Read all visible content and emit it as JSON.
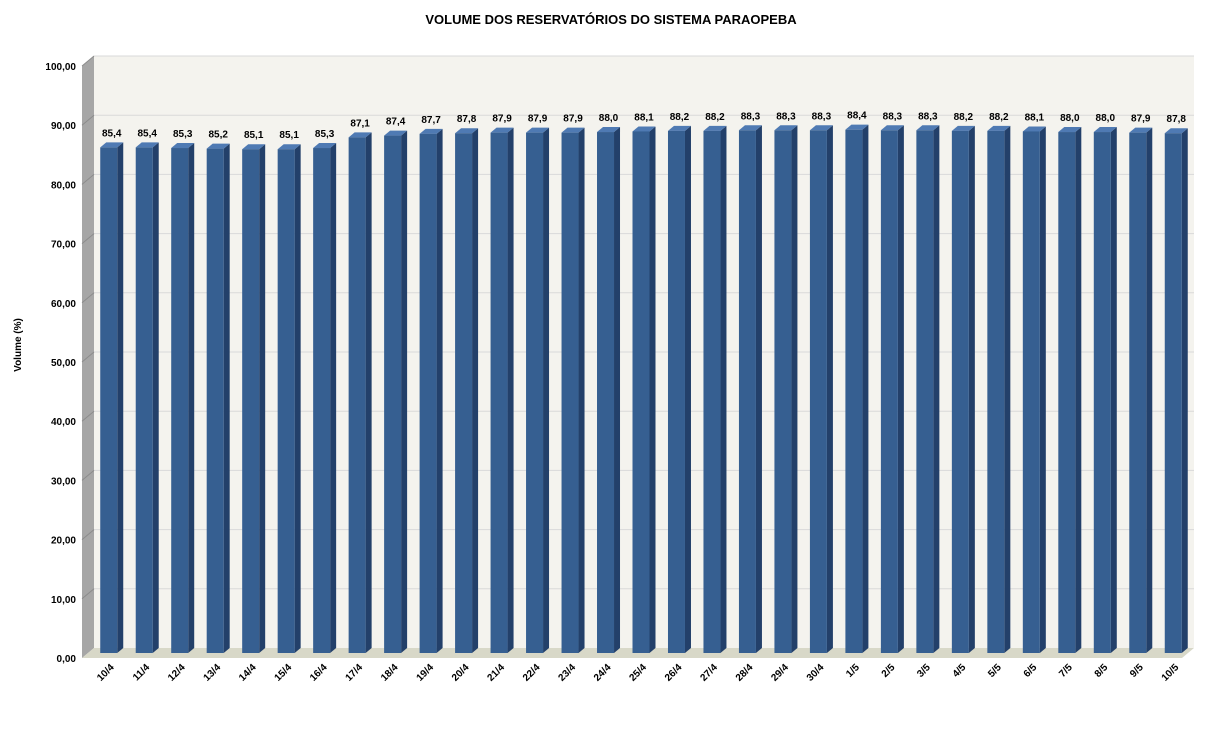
{
  "chart_data": {
    "type": "bar",
    "title": "VOLUME DOS RESERVATÓRIOS DO SISTEMA PARAOPEBA",
    "xlabel": "",
    "ylabel": "Volume (%)",
    "ylim": [
      0,
      100
    ],
    "y_ticks": [
      "0,00",
      "10,00",
      "20,00",
      "30,00",
      "40,00",
      "50,00",
      "60,00",
      "70,00",
      "80,00",
      "90,00",
      "100,00"
    ],
    "grid": true,
    "legend": "none",
    "three_d": true,
    "categories": [
      "10/4",
      "11/4",
      "12/4",
      "13/4",
      "14/4",
      "15/4",
      "16/4",
      "17/4",
      "18/4",
      "19/4",
      "20/4",
      "21/4",
      "22/4",
      "23/4",
      "24/4",
      "25/4",
      "26/4",
      "27/4",
      "28/4",
      "29/4",
      "30/4",
      "1/5",
      "2/5",
      "3/5",
      "4/5",
      "5/5",
      "6/5",
      "7/5",
      "8/5",
      "9/5",
      "10/5"
    ],
    "values": [
      85.4,
      85.4,
      85.3,
      85.2,
      85.1,
      85.1,
      85.3,
      87.1,
      87.4,
      87.7,
      87.8,
      87.9,
      87.9,
      87.9,
      88.0,
      88.1,
      88.2,
      88.2,
      88.3,
      88.3,
      88.3,
      88.4,
      88.3,
      88.3,
      88.2,
      88.2,
      88.1,
      88.0,
      88.0,
      87.9,
      87.8
    ],
    "value_labels": [
      "85,4",
      "85,4",
      "85,3",
      "85,2",
      "85,1",
      "85,1",
      "85,3",
      "87,1",
      "87,4",
      "87,7",
      "87,8",
      "87,9",
      "87,9",
      "87,9",
      "88,0",
      "88,1",
      "88,2",
      "88,2",
      "88,3",
      "88,3",
      "88,3",
      "88,4",
      "88,3",
      "88,3",
      "88,2",
      "88,2",
      "88,1",
      "88,0",
      "88,0",
      "87,9",
      "87,8"
    ],
    "colors": {
      "bar_front": "#365f91",
      "bar_side": "#23406a",
      "bar_top": "#4f7ab3",
      "back_wall": "#f4f3ee",
      "side_wall": "#a6a6a6",
      "floor": "#d8d8c8",
      "gridline": "#d9d9d9"
    }
  }
}
